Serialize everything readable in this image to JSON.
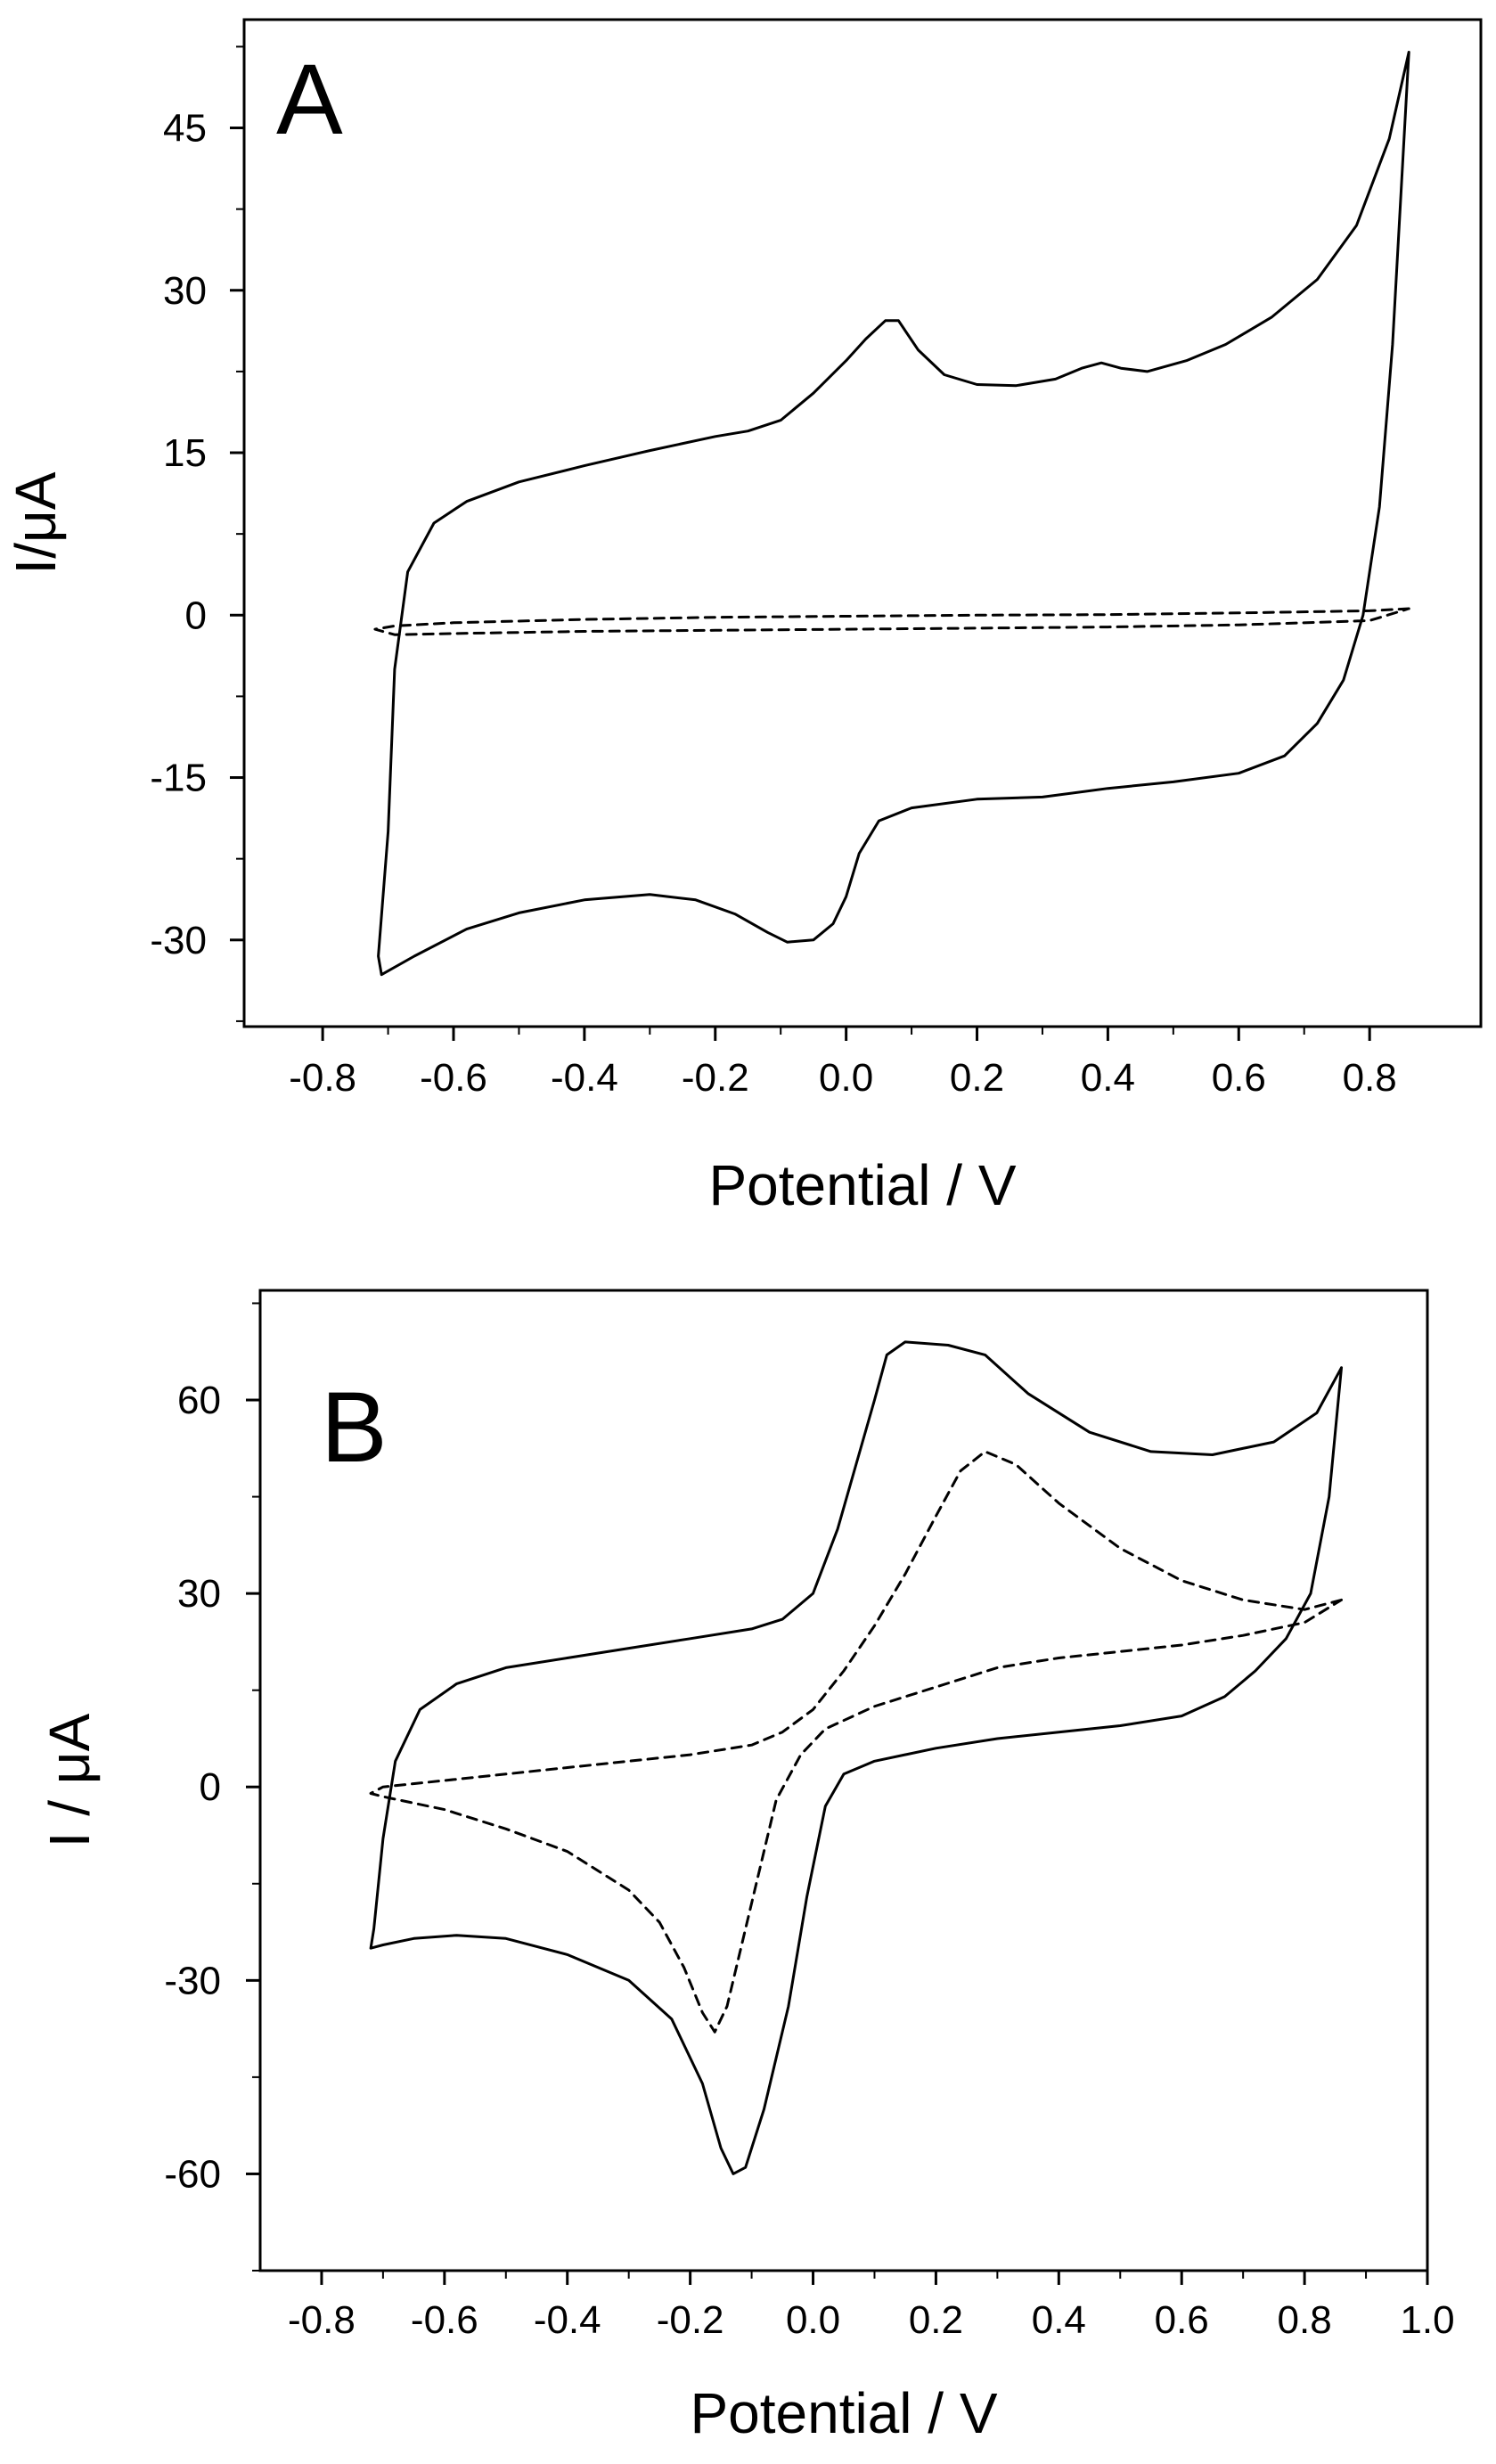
{
  "chart_data": [
    {
      "type": "line",
      "panel_label": "A",
      "xlabel": "Potential / V",
      "ylabel": "I/μA",
      "xlim": [
        -0.92,
        0.97
      ],
      "ylim": [
        -38,
        55
      ],
      "xticks": [
        -0.8,
        -0.6,
        -0.4,
        -0.2,
        0.0,
        0.2,
        0.4,
        0.6,
        0.8
      ],
      "xtick_labels": [
        "-0.8",
        "-0.6",
        "-0.4",
        "-0.2",
        "0.0",
        "0.2",
        "0.4",
        "0.6",
        "0.8"
      ],
      "yticks": [
        -30,
        -15,
        0,
        15,
        30,
        45
      ],
      "ytick_labels": [
        "-30",
        "-15",
        "0",
        "15",
        "30",
        "45"
      ],
      "grid": false,
      "series": [
        {
          "name": "solid",
          "style": "solid",
          "points": [
            [
              0.86,
              52
            ],
            [
              0.83,
              44
            ],
            [
              0.78,
              36
            ],
            [
              0.72,
              31
            ],
            [
              0.65,
              27.5
            ],
            [
              0.58,
              25
            ],
            [
              0.52,
              23.5
            ],
            [
              0.46,
              22.5
            ],
            [
              0.42,
              22.8
            ],
            [
              0.39,
              23.3
            ],
            [
              0.36,
              22.8
            ],
            [
              0.32,
              21.8
            ],
            [
              0.26,
              21.2
            ],
            [
              0.2,
              21.3
            ],
            [
              0.15,
              22.2
            ],
            [
              0.11,
              24.5
            ],
            [
              0.08,
              27.2
            ],
            [
              0.06,
              27.2
            ],
            [
              0.03,
              25.5
            ],
            [
              0.0,
              23.5
            ],
            [
              -0.05,
              20.5
            ],
            [
              -0.1,
              18
            ],
            [
              -0.15,
              17
            ],
            [
              -0.2,
              16.5
            ],
            [
              -0.3,
              15.2
            ],
            [
              -0.4,
              13.8
            ],
            [
              -0.5,
              12.3
            ],
            [
              -0.58,
              10.5
            ],
            [
              -0.63,
              8.5
            ],
            [
              -0.67,
              4
            ],
            [
              -0.69,
              -5
            ],
            [
              -0.7,
              -20
            ],
            [
              -0.715,
              -31.5
            ],
            [
              -0.71,
              -33.2
            ],
            [
              -0.66,
              -31.5
            ],
            [
              -0.58,
              -29
            ],
            [
              -0.5,
              -27.5
            ],
            [
              -0.4,
              -26.3
            ],
            [
              -0.3,
              -25.8
            ],
            [
              -0.23,
              -26.3
            ],
            [
              -0.17,
              -27.6
            ],
            [
              -0.12,
              -29.3
            ],
            [
              -0.09,
              -30.2
            ],
            [
              -0.05,
              -30
            ],
            [
              -0.02,
              -28.5
            ],
            [
              0.0,
              -26
            ],
            [
              0.02,
              -22
            ],
            [
              0.05,
              -19
            ],
            [
              0.1,
              -17.8
            ],
            [
              0.2,
              -17
            ],
            [
              0.3,
              -16.8
            ],
            [
              0.4,
              -16
            ],
            [
              0.5,
              -15.4
            ],
            [
              0.6,
              -14.6
            ],
            [
              0.67,
              -13
            ],
            [
              0.72,
              -10
            ],
            [
              0.76,
              -6
            ],
            [
              0.79,
              0
            ],
            [
              0.815,
              10
            ],
            [
              0.835,
              25
            ],
            [
              0.86,
              52
            ]
          ]
        },
        {
          "name": "dashed",
          "style": "dashed",
          "points": [
            [
              0.86,
              0.6
            ],
            [
              0.8,
              0.4
            ],
            [
              0.6,
              0.2
            ],
            [
              0.4,
              0.05
            ],
            [
              0.2,
              0
            ],
            [
              0.0,
              -0.1
            ],
            [
              -0.2,
              -0.2
            ],
            [
              -0.4,
              -0.4
            ],
            [
              -0.6,
              -0.7
            ],
            [
              -0.69,
              -1.0
            ],
            [
              -0.72,
              -1.3
            ],
            [
              -0.69,
              -1.8
            ],
            [
              -0.6,
              -1.7
            ],
            [
              -0.4,
              -1.5
            ],
            [
              -0.2,
              -1.4
            ],
            [
              0.0,
              -1.3
            ],
            [
              0.2,
              -1.2
            ],
            [
              0.4,
              -1.1
            ],
            [
              0.6,
              -0.9
            ],
            [
              0.8,
              -0.5
            ],
            [
              0.86,
              0.6
            ]
          ]
        }
      ]
    },
    {
      "type": "line",
      "panel_label": "B",
      "xlabel": "Potential / V",
      "ylabel": "I / μA",
      "xlim": [
        -0.9,
        1.0
      ],
      "ylim": [
        -75,
        77
      ],
      "xticks": [
        -0.8,
        -0.6,
        -0.4,
        -0.2,
        0.0,
        0.2,
        0.4,
        0.6,
        0.8,
        1.0
      ],
      "xtick_labels": [
        "-0.8",
        "-0.6",
        "-0.4",
        "-0.2",
        "0.0",
        "0.2",
        "0.4",
        "0.6",
        "0.8",
        "1.0"
      ],
      "yticks": [
        -60,
        -30,
        0,
        30,
        60
      ],
      "ytick_labels": [
        "-60",
        "-30",
        "0",
        "30",
        "60"
      ],
      "grid": false,
      "series": [
        {
          "name": "solid",
          "style": "solid",
          "points": [
            [
              0.86,
              65
            ],
            [
              0.82,
              58
            ],
            [
              0.75,
              53.5
            ],
            [
              0.65,
              51.5
            ],
            [
              0.55,
              52
            ],
            [
              0.45,
              55
            ],
            [
              0.35,
              61
            ],
            [
              0.28,
              67
            ],
            [
              0.22,
              68.5
            ],
            [
              0.15,
              69
            ],
            [
              0.12,
              67
            ],
            [
              0.1,
              60
            ],
            [
              0.07,
              50
            ],
            [
              0.04,
              40
            ],
            [
              0.0,
              30
            ],
            [
              -0.05,
              26
            ],
            [
              -0.1,
              24.5
            ],
            [
              -0.2,
              23
            ],
            [
              -0.3,
              21.5
            ],
            [
              -0.4,
              20
            ],
            [
              -0.5,
              18.5
            ],
            [
              -0.58,
              16
            ],
            [
              -0.64,
              12
            ],
            [
              -0.68,
              4
            ],
            [
              -0.7,
              -8
            ],
            [
              -0.715,
              -22
            ],
            [
              -0.72,
              -25
            ],
            [
              -0.7,
              -24.5
            ],
            [
              -0.65,
              -23.5
            ],
            [
              -0.58,
              -23
            ],
            [
              -0.5,
              -23.5
            ],
            [
              -0.4,
              -26
            ],
            [
              -0.3,
              -30
            ],
            [
              -0.23,
              -36
            ],
            [
              -0.18,
              -46
            ],
            [
              -0.15,
              -56
            ],
            [
              -0.13,
              -60
            ],
            [
              -0.11,
              -59
            ],
            [
              -0.08,
              -50
            ],
            [
              -0.04,
              -34
            ],
            [
              -0.01,
              -17
            ],
            [
              0.02,
              -3
            ],
            [
              0.05,
              2
            ],
            [
              0.1,
              4
            ],
            [
              0.2,
              6
            ],
            [
              0.3,
              7.5
            ],
            [
              0.4,
              8.5
            ],
            [
              0.5,
              9.5
            ],
            [
              0.6,
              11
            ],
            [
              0.67,
              14
            ],
            [
              0.72,
              18
            ],
            [
              0.77,
              23
            ],
            [
              0.81,
              30
            ],
            [
              0.84,
              45
            ],
            [
              0.86,
              65
            ]
          ]
        },
        {
          "name": "dashed",
          "style": "dashed",
          "points": [
            [
              0.86,
              29
            ],
            [
              0.8,
              27.5
            ],
            [
              0.7,
              29
            ],
            [
              0.6,
              32
            ],
            [
              0.5,
              37
            ],
            [
              0.4,
              44
            ],
            [
              0.33,
              50
            ],
            [
              0.28,
              52
            ],
            [
              0.24,
              49
            ],
            [
              0.2,
              42
            ],
            [
              0.15,
              33
            ],
            [
              0.1,
              25
            ],
            [
              0.05,
              18
            ],
            [
              0.0,
              12
            ],
            [
              -0.05,
              8.5
            ],
            [
              -0.1,
              6.5
            ],
            [
              -0.2,
              5
            ],
            [
              -0.3,
              4
            ],
            [
              -0.4,
              3
            ],
            [
              -0.5,
              2
            ],
            [
              -0.6,
              1
            ],
            [
              -0.7,
              0
            ],
            [
              -0.72,
              -1
            ],
            [
              -0.7,
              -1.5
            ],
            [
              -0.6,
              -3.5
            ],
            [
              -0.5,
              -6.5
            ],
            [
              -0.4,
              -10
            ],
            [
              -0.3,
              -16
            ],
            [
              -0.25,
              -21
            ],
            [
              -0.21,
              -28
            ],
            [
              -0.18,
              -35
            ],
            [
              -0.16,
              -38
            ],
            [
              -0.14,
              -34
            ],
            [
              -0.12,
              -26
            ],
            [
              -0.09,
              -14
            ],
            [
              -0.06,
              -2
            ],
            [
              -0.02,
              5
            ],
            [
              0.02,
              9
            ],
            [
              0.1,
              12.5
            ],
            [
              0.2,
              15.5
            ],
            [
              0.3,
              18.5
            ],
            [
              0.4,
              20
            ],
            [
              0.5,
              21
            ],
            [
              0.6,
              22
            ],
            [
              0.7,
              23.5
            ],
            [
              0.8,
              25.5
            ],
            [
              0.86,
              29
            ]
          ]
        }
      ]
    }
  ]
}
